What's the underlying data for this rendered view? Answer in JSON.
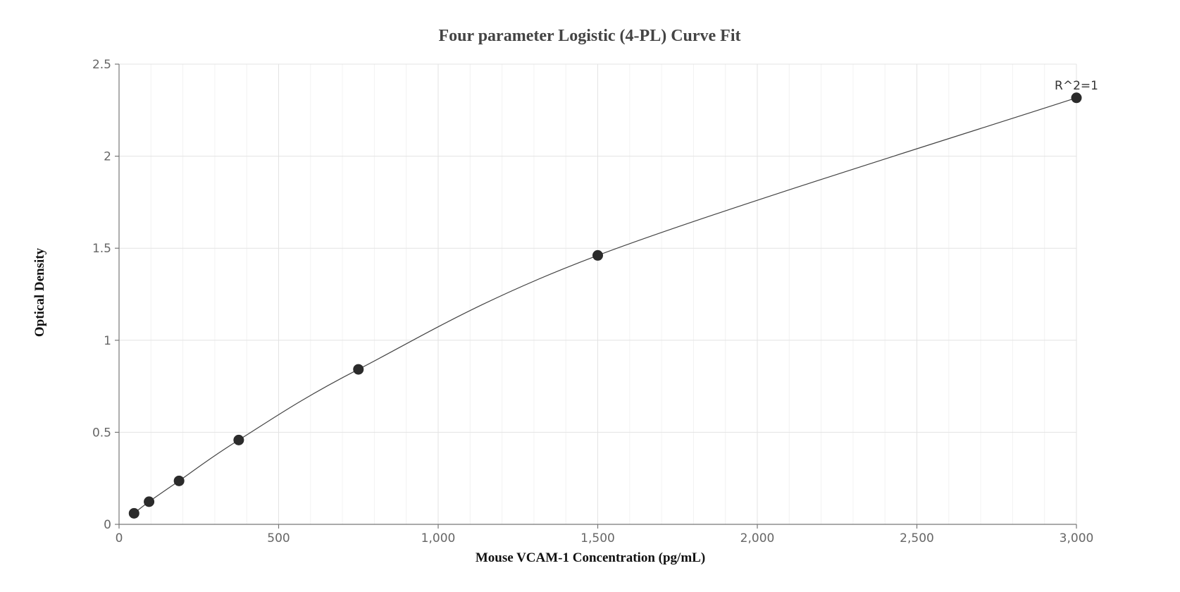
{
  "chart_data": {
    "type": "scatter",
    "title": "Four parameter Logistic (4-PL) Curve Fit",
    "xlabel": "Mouse VCAM-1 Concentration (pg/mL)",
    "ylabel": "Optical Density",
    "xlim": [
      0,
      3000
    ],
    "ylim": [
      0,
      2.5
    ],
    "x_ticks": [
      0,
      500,
      1000,
      1500,
      2000,
      2500,
      3000
    ],
    "x_tick_labels": [
      "0",
      "500",
      "1,000",
      "1,500",
      "2,000",
      "2,500",
      "3,000"
    ],
    "y_ticks": [
      0,
      0.5,
      1,
      1.5,
      2,
      2.5
    ],
    "y_tick_labels": [
      "0",
      "0.5",
      "1",
      "1.5",
      "2",
      "2.5"
    ],
    "grid": true,
    "legend": "none",
    "series": [
      {
        "points": [
          {
            "x": 47,
            "y": 0.06
          },
          {
            "x": 94,
            "y": 0.123
          },
          {
            "x": 188,
            "y": 0.236
          },
          {
            "x": 375,
            "y": 0.458
          },
          {
            "x": 750,
            "y": 0.842
          },
          {
            "x": 1500,
            "y": 1.461
          },
          {
            "x": 3000,
            "y": 2.317
          }
        ],
        "fit": "4PL"
      }
    ],
    "annotations": [
      {
        "text": "R^2=1",
        "x": 3000,
        "y": 2.317
      }
    ],
    "colors": {
      "points": "#2b2b2b",
      "curve": "#444444",
      "grid": "#e3e3e3"
    }
  }
}
